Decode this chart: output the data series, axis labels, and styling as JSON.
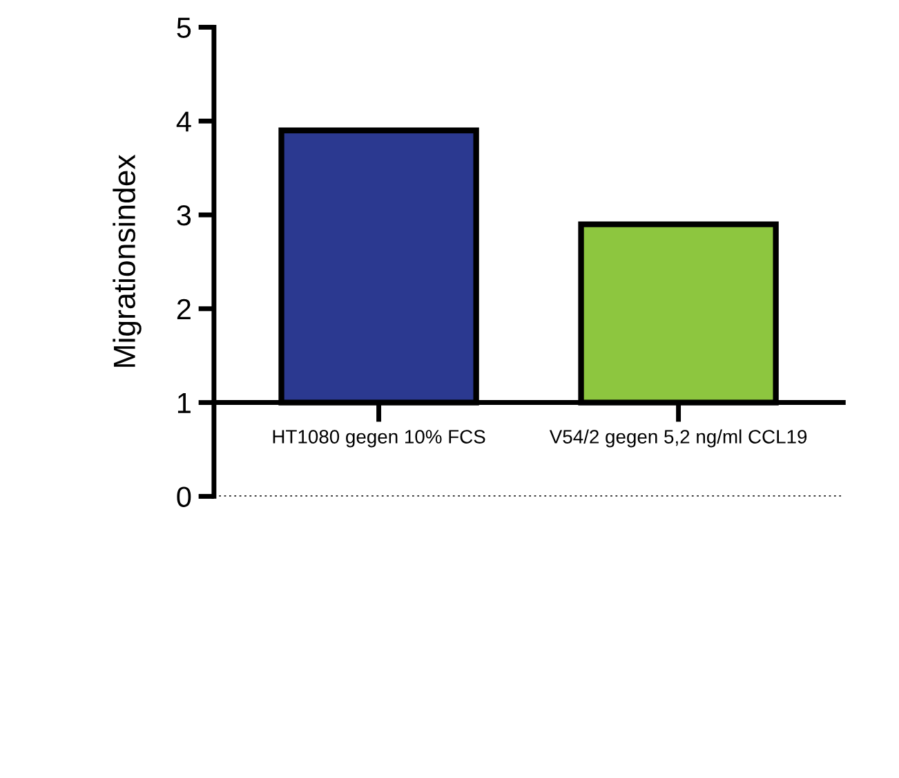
{
  "chart_data": {
    "type": "bar",
    "ylabel": "Migrationsindex",
    "categories": [
      "HT1080 gegen 10% FCS",
      "V54/2 gegen 5,2 ng/ml CCL19"
    ],
    "values": [
      2.9,
      1.9
    ],
    "base": [
      1,
      1
    ],
    "colors": [
      "#2b3990",
      "#8dc63f"
    ],
    "ylim": [
      0,
      5
    ],
    "yticks": [
      0,
      1,
      2,
      3,
      4,
      5
    ],
    "grid": false,
    "legend": false,
    "ref_lines": [
      {
        "axis": "y",
        "value": 0,
        "line_style": "dotted",
        "color": "#000000"
      }
    ]
  }
}
